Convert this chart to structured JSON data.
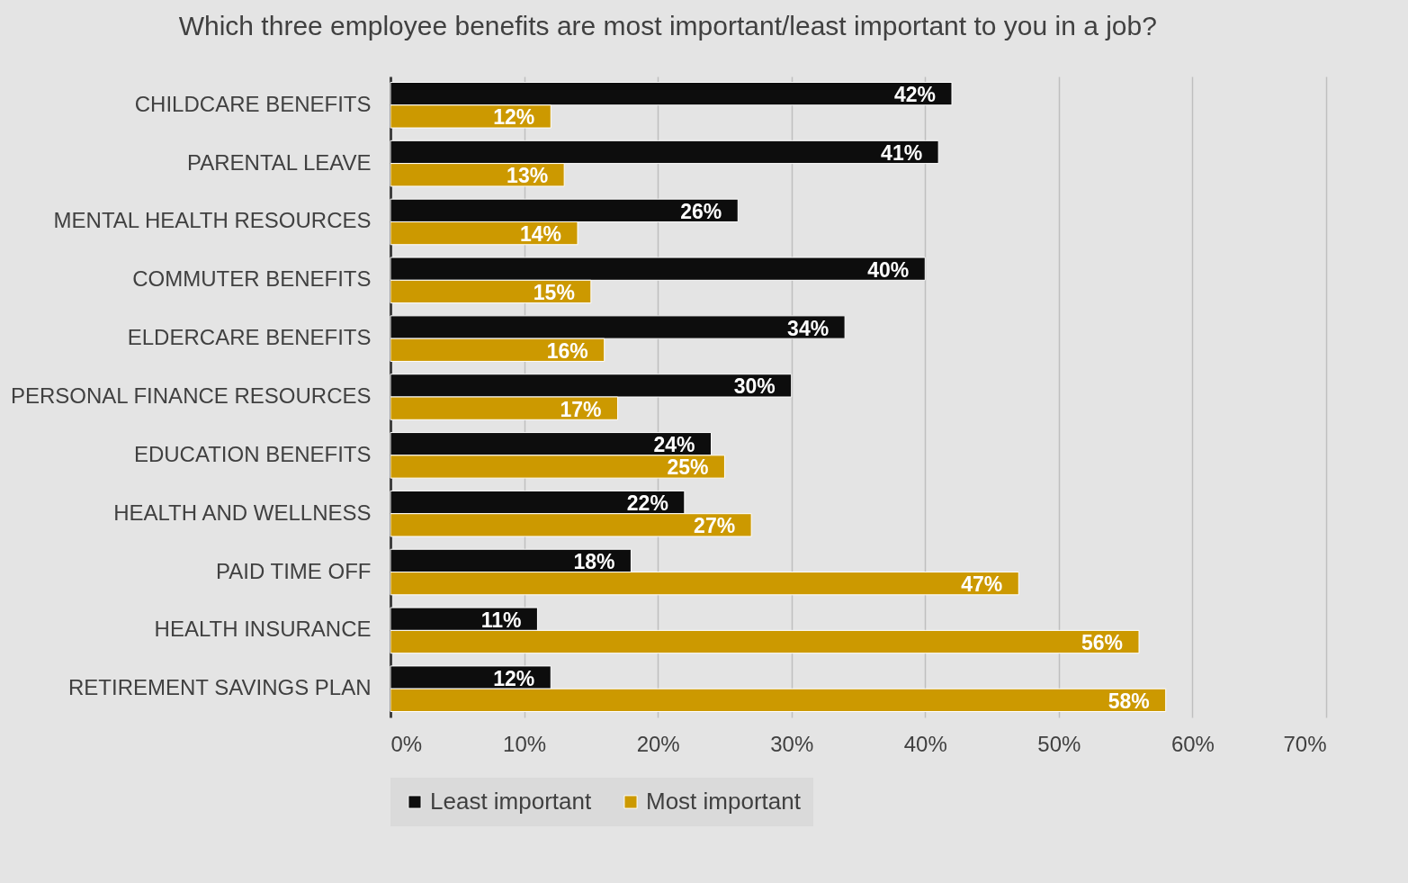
{
  "chart_data": {
    "type": "bar",
    "orientation": "horizontal",
    "title": "Which three employee benefits are most important/least important to you in a job?",
    "categories": [
      "CHILDCARE BENEFITS",
      "PARENTAL LEAVE",
      "MENTAL HEALTH RESOURCES",
      "COMMUTER BENEFITS",
      "ELDERCARE BENEFITS",
      "PERSONAL FINANCE RESOURCES",
      "EDUCATION BENEFITS",
      "HEALTH AND WELLNESS",
      "PAID TIME OFF",
      "HEALTH INSURANCE",
      "RETIREMENT SAVINGS PLAN"
    ],
    "series": [
      {
        "name": "Least important",
        "color": "#0d0d0d",
        "values": [
          42,
          41,
          26,
          40,
          34,
          30,
          24,
          22,
          18,
          11,
          12
        ],
        "value_labels": [
          "42%",
          "41%",
          "26%",
          "40%",
          "34%",
          "30%",
          "24%",
          "22%",
          "18%",
          "11%",
          "12%"
        ]
      },
      {
        "name": "Most important",
        "color": "#cc9900",
        "values": [
          12,
          13,
          14,
          15,
          16,
          17,
          25,
          27,
          47,
          56,
          58
        ],
        "value_labels": [
          "12%",
          "13%",
          "14%",
          "15%",
          "16%",
          "17%",
          "25%",
          "27%",
          "47%",
          "56%",
          "58%"
        ]
      }
    ],
    "xlim": [
      0,
      70
    ],
    "xticks": [
      {
        "value": 0,
        "label": "0%"
      },
      {
        "value": 10,
        "label": "10%"
      },
      {
        "value": 20,
        "label": "20%"
      },
      {
        "value": 30,
        "label": "30%"
      },
      {
        "value": 40,
        "label": "40%"
      },
      {
        "value": 50,
        "label": "50%"
      },
      {
        "value": 60,
        "label": "60%"
      },
      {
        "value": 70,
        "label": "70%"
      }
    ],
    "grid": "x",
    "legend": "bottom"
  }
}
